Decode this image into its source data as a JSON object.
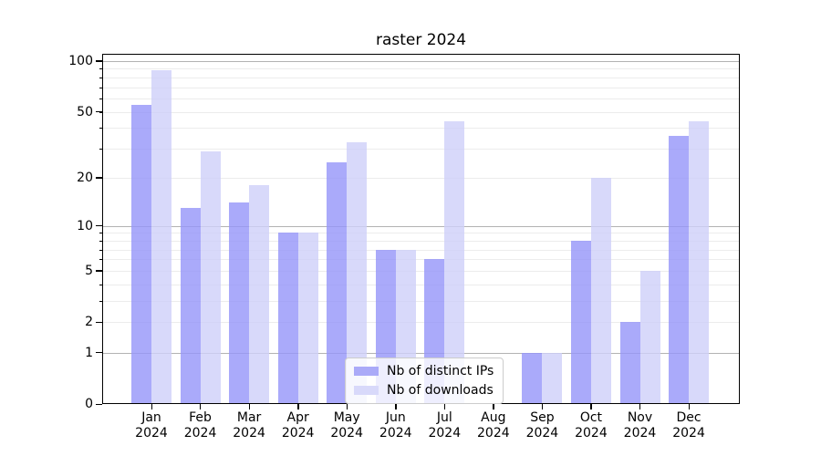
{
  "title": "raster 2024",
  "chart_data": {
    "type": "bar",
    "title": "raster 2024",
    "categories": [
      "Jan 2024",
      "Feb 2024",
      "Mar 2024",
      "Apr 2024",
      "May 2024",
      "Jun 2024",
      "Jul 2024",
      "Aug 2024",
      "Sep 2024",
      "Oct 2024",
      "Nov 2024",
      "Dec 2024"
    ],
    "months": [
      "Jan",
      "Feb",
      "Mar",
      "Apr",
      "May",
      "Jun",
      "Jul",
      "Aug",
      "Sep",
      "Oct",
      "Nov",
      "Dec"
    ],
    "year": "2024",
    "series": [
      {
        "name": "Nb of distinct IPs",
        "values": [
          55,
          13,
          14,
          9,
          25,
          7,
          6,
          0,
          1,
          8,
          2,
          36
        ]
      },
      {
        "name": "Nb of downloads",
        "values": [
          88,
          29,
          18,
          9,
          33,
          7,
          44,
          0,
          1,
          20,
          5,
          44
        ]
      }
    ],
    "yscale": "log1p",
    "ylim": [
      0,
      110.3
    ],
    "y_tick_values": [
      0,
      1,
      2,
      5,
      10,
      20,
      50,
      100
    ],
    "y_tick_labels": [
      "0",
      "1",
      "2",
      "5",
      "10",
      "20",
      "50",
      "100"
    ],
    "major_grid_values": [
      1,
      10,
      100
    ],
    "minor_grid_values": [
      2,
      3,
      4,
      5,
      6,
      7,
      8,
      9,
      20,
      30,
      40,
      50,
      60,
      70,
      80,
      90
    ],
    "grid": true,
    "legend_position": "lower center"
  },
  "colors": {
    "ips_bar": "rgba(149,149,249,0.8)",
    "downloads_bar": "rgba(206,207,249,0.8)",
    "ips_swatch": "#aaaaf8",
    "downloads_swatch": "#d8d9fa",
    "grid_major": "#b3b3b3",
    "grid_minor": "#ececec",
    "axis": "#000000"
  }
}
